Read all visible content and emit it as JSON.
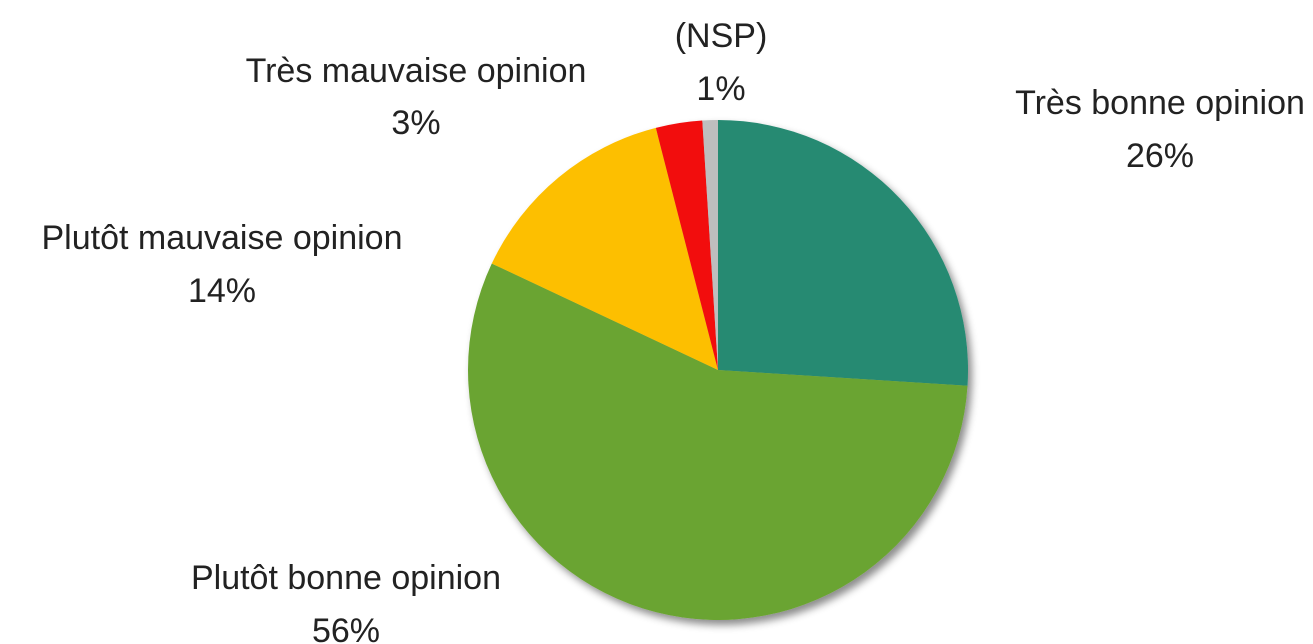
{
  "chart_data": {
    "type": "pie",
    "title": "",
    "start": "12-o'clock",
    "direction": "clockwise",
    "shadow": true,
    "slices": [
      {
        "label": "Très bonne opinion",
        "value": 26,
        "display": "26%",
        "color": "#258A72"
      },
      {
        "label": "Plutôt bonne opinion",
        "value": 56,
        "display": "56%",
        "color": "#6BA430"
      },
      {
        "label": "Plutôt mauvaise opinion",
        "value": 14,
        "display": "14%",
        "color": "#FDBF00"
      },
      {
        "label": "Très mauvaise opinion",
        "value": 3,
        "display": "3%",
        "color": "#F20D0D"
      },
      {
        "label": "(NSP)",
        "value": 1,
        "display": "1%",
        "color": "#BEBEBE"
      }
    ]
  }
}
